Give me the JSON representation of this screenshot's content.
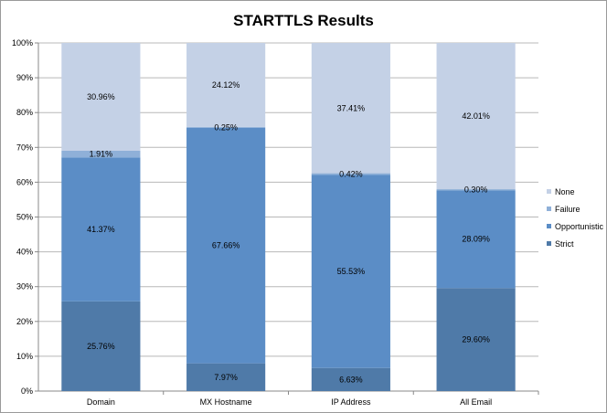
{
  "chart_data": {
    "type": "bar",
    "stacked": true,
    "percent": true,
    "title": "STARTTLS Results",
    "categories": [
      "Domain",
      "MX Hostname",
      "IP Address",
      "All Email"
    ],
    "series": [
      {
        "name": "Strict",
        "values": [
          25.76,
          7.97,
          6.63,
          29.6
        ],
        "labels": [
          "25.76%",
          "7.97%",
          "6.63%",
          "29.60%"
        ],
        "color": "#4f7aa8"
      },
      {
        "name": "Opportunistic",
        "values": [
          41.37,
          67.66,
          55.53,
          28.09
        ],
        "labels": [
          "41.37%",
          "67.66%",
          "55.53%",
          "28.09%"
        ],
        "color": "#5b8dc6"
      },
      {
        "name": "Failure",
        "values": [
          1.91,
          0.25,
          0.42,
          0.3
        ],
        "labels": [
          "1.91%",
          "0.25%",
          "0.42%",
          "0.30%"
        ],
        "color": "#8fb0d8"
      },
      {
        "name": "None",
        "values": [
          30.96,
          24.12,
          37.41,
          42.01
        ],
        "labels": [
          "30.96%",
          "24.12%",
          "37.41%",
          "42.01%"
        ],
        "color": "#c4d1e6"
      }
    ],
    "ylim": [
      0,
      100
    ],
    "yticks": [
      "0%",
      "10%",
      "20%",
      "30%",
      "40%",
      "50%",
      "60%",
      "70%",
      "80%",
      "90%",
      "100%"
    ],
    "grid": true,
    "legend_position": "right",
    "legend_order": [
      "None",
      "Failure",
      "Opportunistic",
      "Strict"
    ]
  }
}
